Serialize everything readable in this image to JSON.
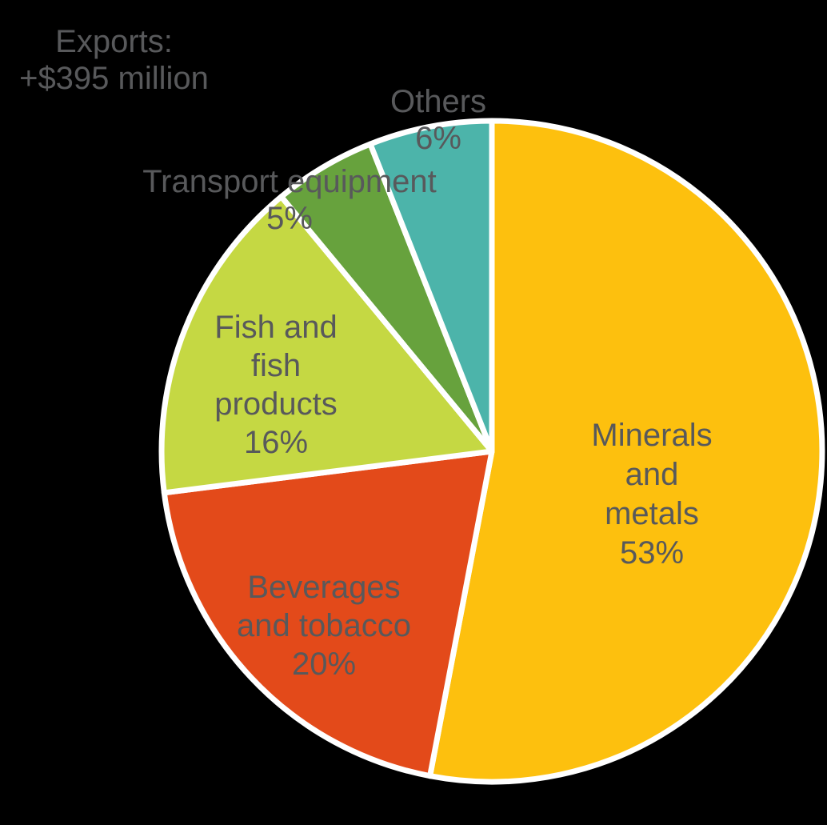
{
  "header": {
    "line1": "Exports:",
    "line2": "+$395 million"
  },
  "chart_data": {
    "type": "pie",
    "title": "Exports: +$395 million",
    "start_angle_deg": 0,
    "direction": "clockwise",
    "background_color": "#000000",
    "slice_border_color": "#FFFFFF",
    "text_color": "#58595B",
    "legend": "none (labels inside/near slices)",
    "categories": [
      "Minerals and metals",
      "Beverages and tobacco",
      "Fish and fish products",
      "Transport equipment",
      "Others"
    ],
    "values": [
      53,
      20,
      16,
      5,
      6
    ],
    "slices": [
      {
        "label": "Minerals and metals",
        "pct": 53,
        "color": "#FDC00E",
        "label_lines": [
          "Minerals",
          "and",
          "metals",
          "53%"
        ]
      },
      {
        "label": "Beverages and tobacco",
        "pct": 20,
        "color": "#E34A1A",
        "label_lines": [
          "Beverages",
          "and tobacco",
          "20%"
        ]
      },
      {
        "label": "Fish and fish products",
        "pct": 16,
        "color": "#C5D843",
        "label_lines": [
          "Fish and",
          "fish",
          "products",
          "16%"
        ]
      },
      {
        "label": "Transport equipment",
        "pct": 5,
        "color": "#67A23D",
        "label_lines": [
          "Transport equipment",
          "5%"
        ]
      },
      {
        "label": "Others",
        "pct": 6,
        "color": "#4CB4AA",
        "label_lines": [
          "Others",
          "6%"
        ]
      }
    ]
  }
}
